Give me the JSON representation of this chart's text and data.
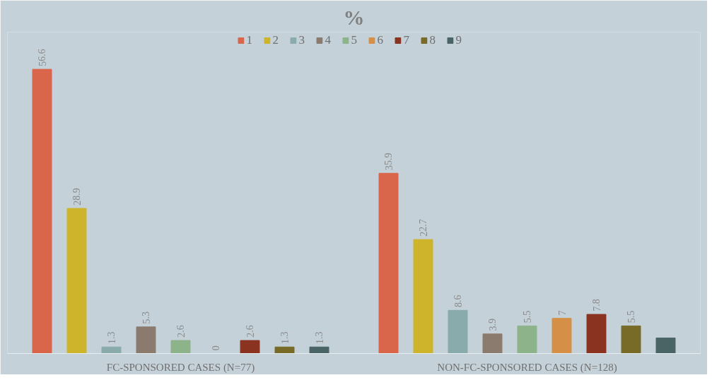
{
  "chart_data": {
    "type": "bar",
    "title": "%",
    "categories": [
      "FC-SPONSORED CASES (N=77)",
      "NON-FC-SPONSORED CASES (N=128)"
    ],
    "series": [
      {
        "name": "1",
        "color": "#d9654b",
        "values": [
          56.6,
          35.9
        ]
      },
      {
        "name": "2",
        "color": "#cdb42b",
        "values": [
          28.9,
          22.7
        ]
      },
      {
        "name": "3",
        "color": "#8aabab",
        "values": [
          1.3,
          8.6
        ]
      },
      {
        "name": "4",
        "color": "#8b7b6e",
        "values": [
          5.3,
          3.9
        ]
      },
      {
        "name": "5",
        "color": "#8db38a",
        "values": [
          2.6,
          5.5
        ]
      },
      {
        "name": "6",
        "color": "#d68f46",
        "values": [
          0,
          7
        ]
      },
      {
        "name": "7",
        "color": "#8a3321",
        "values": [
          2.6,
          7.8
        ]
      },
      {
        "name": "8",
        "color": "#776b27",
        "values": [
          1.3,
          5.5
        ]
      },
      {
        "name": "9",
        "color": "#4a6466",
        "values": [
          1.3,
          3.1
        ],
        "value_labels": [
          "1.3",
          null
        ]
      }
    ],
    "ylim": [
      0,
      64
    ],
    "data_labels": true,
    "legend": "top",
    "grid": false
  }
}
